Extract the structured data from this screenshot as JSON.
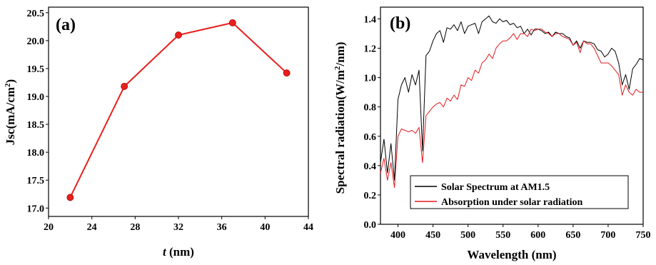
{
  "figure": {
    "panels": [
      "(a)",
      "(b)"
    ]
  },
  "chart_data": [
    {
      "type": "line",
      "panel": "(a)",
      "xlabel_italic": "t",
      "xlabel_rest": " (nm)",
      "ylabel": "Jsc(mA/cm",
      "ylabel_sup": "2",
      "ylabel_end": ")",
      "xlim": [
        20,
        44
      ],
      "ylim": [
        16.85,
        20.6
      ],
      "xticks": [
        "20",
        "24",
        "28",
        "32",
        "36",
        "40",
        "44"
      ],
      "yticks": [
        "17.0",
        "17.5",
        "18.0",
        "18.5",
        "19.0",
        "19.5",
        "20.0",
        "20.5"
      ],
      "series": [
        {
          "color": "#e8201e",
          "x": [
            22,
            27,
            32,
            37,
            42
          ],
          "y": [
            17.19,
            19.18,
            20.1,
            20.32,
            19.42
          ]
        }
      ]
    },
    {
      "type": "line",
      "panel": "(b)",
      "xlabel": "Wavelength (nm)",
      "ylabel": "Spectral radiation(W/m",
      "ylabel_sup": "2",
      "ylabel_end": "/nm)",
      "xlim": [
        375,
        750
      ],
      "ylim": [
        0.0,
        1.48
      ],
      "xticks": [
        "400",
        "450",
        "500",
        "550",
        "600",
        "650",
        "700",
        "750"
      ],
      "yticks": [
        "0.0",
        "0.2",
        "0.4",
        "0.6",
        "0.8",
        "1.0",
        "1.2",
        "1.4"
      ],
      "legend": "bottom-left",
      "series": [
        {
          "name": "Solar Spectrum at AM1.5",
          "color": "#000000",
          "x": [
            375,
            380,
            385,
            390,
            395,
            400,
            405,
            410,
            415,
            420,
            425,
            430,
            435,
            440,
            445,
            450,
            455,
            460,
            465,
            470,
            475,
            480,
            485,
            490,
            495,
            500,
            505,
            510,
            515,
            520,
            525,
            530,
            535,
            540,
            545,
            550,
            555,
            560,
            565,
            570,
            575,
            580,
            585,
            590,
            595,
            600,
            605,
            610,
            615,
            620,
            625,
            630,
            635,
            640,
            645,
            650,
            655,
            660,
            665,
            670,
            675,
            680,
            685,
            690,
            695,
            700,
            705,
            710,
            715,
            720,
            725,
            730,
            735,
            740,
            745,
            750
          ],
          "y": [
            0.42,
            0.58,
            0.35,
            0.55,
            0.3,
            0.85,
            0.95,
            1.0,
            0.9,
            1.02,
            0.95,
            1.05,
            0.5,
            1.15,
            1.18,
            1.25,
            1.3,
            1.32,
            1.24,
            1.34,
            1.33,
            1.36,
            1.32,
            1.38,
            1.3,
            1.35,
            1.36,
            1.37,
            1.3,
            1.38,
            1.4,
            1.42,
            1.38,
            1.37,
            1.4,
            1.38,
            1.39,
            1.36,
            1.37,
            1.34,
            1.35,
            1.3,
            1.33,
            1.29,
            1.33,
            1.33,
            1.32,
            1.3,
            1.31,
            1.28,
            1.31,
            1.3,
            1.3,
            1.28,
            1.27,
            1.22,
            1.25,
            1.2,
            1.25,
            1.24,
            1.24,
            1.23,
            1.19,
            1.18,
            1.14,
            1.16,
            1.2,
            1.18,
            1.1,
            0.95,
            1.02,
            0.92,
            1.06,
            1.09,
            1.13,
            1.12
          ]
        },
        {
          "name": "Absorption under solar radiation",
          "color": "#e31a1c",
          "x": [
            375,
            380,
            385,
            390,
            395,
            400,
            405,
            410,
            415,
            420,
            425,
            430,
            435,
            440,
            445,
            450,
            455,
            460,
            465,
            470,
            475,
            480,
            485,
            490,
            495,
            500,
            505,
            510,
            515,
            520,
            525,
            530,
            535,
            540,
            545,
            550,
            555,
            560,
            565,
            570,
            575,
            580,
            585,
            590,
            595,
            600,
            605,
            610,
            615,
            620,
            625,
            630,
            635,
            640,
            645,
            650,
            655,
            660,
            665,
            670,
            675,
            680,
            685,
            690,
            695,
            700,
            705,
            710,
            715,
            720,
            725,
            730,
            735,
            740,
            745,
            750
          ],
          "y": [
            0.35,
            0.45,
            0.3,
            0.42,
            0.25,
            0.6,
            0.65,
            0.64,
            0.63,
            0.64,
            0.62,
            0.66,
            0.42,
            0.74,
            0.77,
            0.8,
            0.82,
            0.83,
            0.8,
            0.86,
            0.84,
            0.88,
            0.85,
            0.95,
            0.94,
            1.0,
            0.98,
            1.05,
            1.03,
            1.1,
            1.12,
            1.16,
            1.13,
            1.2,
            1.23,
            1.25,
            1.25,
            1.27,
            1.3,
            1.26,
            1.3,
            1.3,
            1.28,
            1.33,
            1.32,
            1.33,
            1.33,
            1.31,
            1.3,
            1.28,
            1.3,
            1.3,
            1.28,
            1.27,
            1.26,
            1.22,
            1.24,
            1.17,
            1.25,
            1.23,
            1.23,
            1.2,
            1.15,
            1.1,
            1.1,
            1.1,
            1.08,
            1.05,
            1.02,
            0.88,
            0.95,
            0.9,
            0.88,
            0.92,
            0.9,
            0.9
          ]
        }
      ]
    }
  ]
}
